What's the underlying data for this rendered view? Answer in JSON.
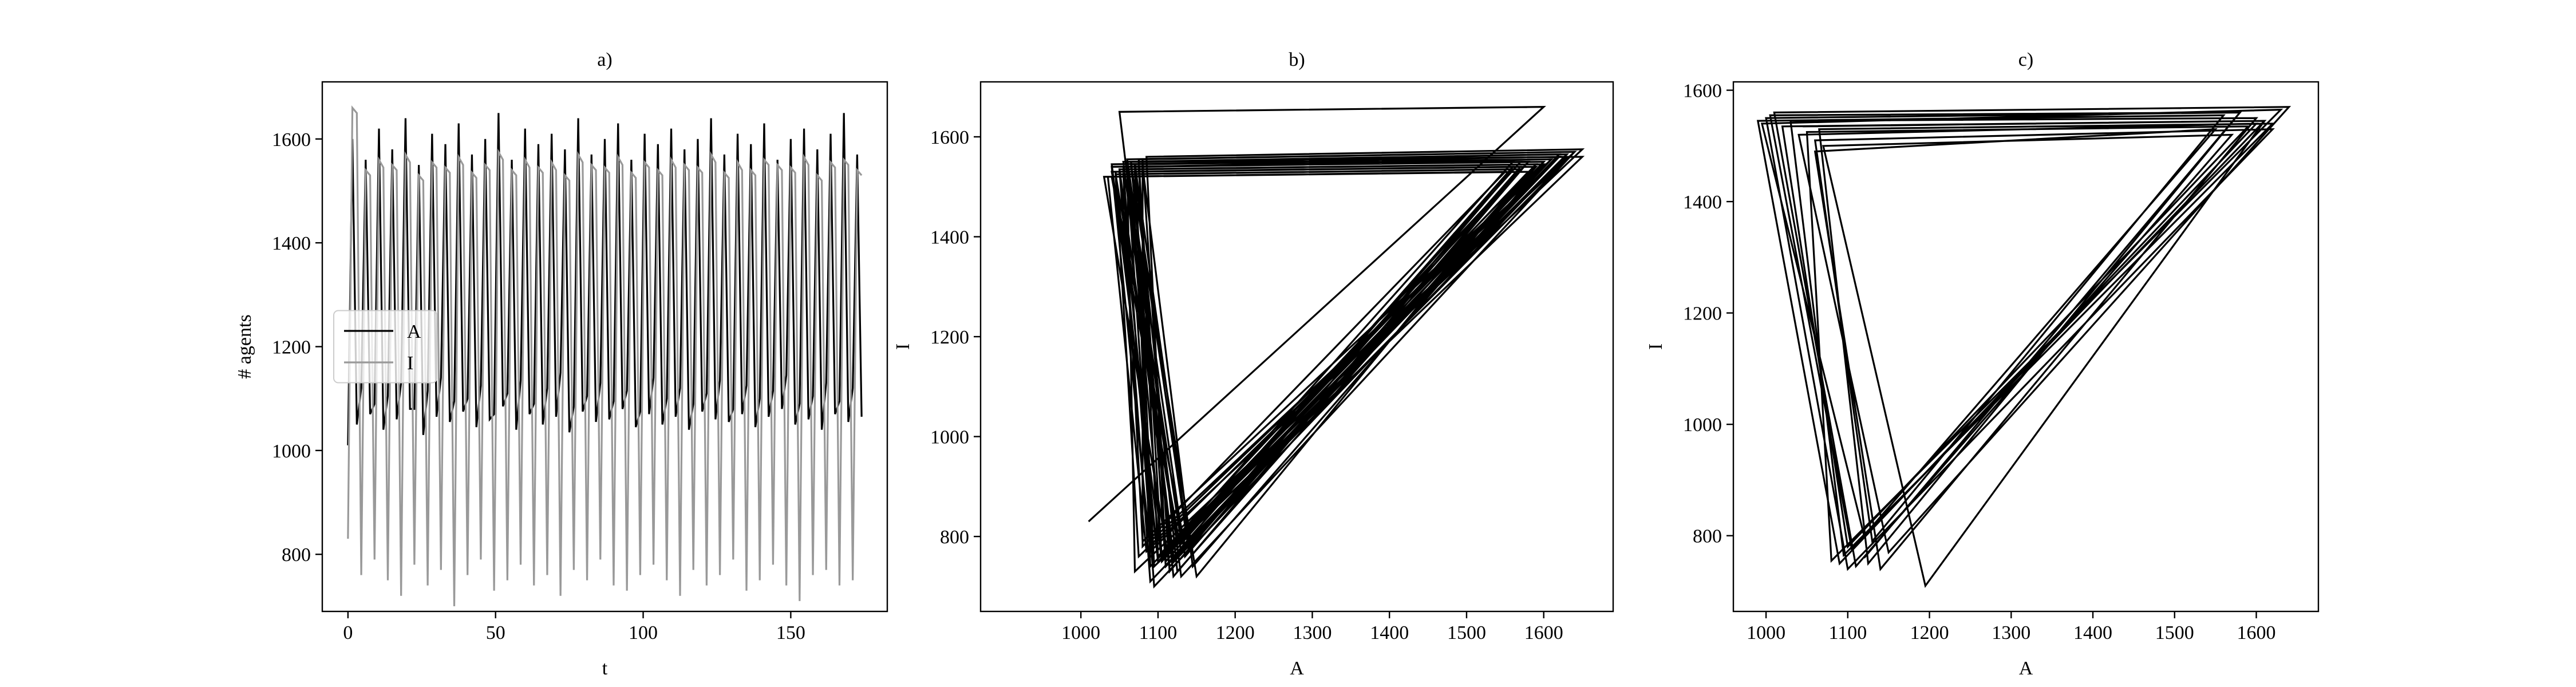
{
  "chart_data": [
    {
      "type": "line",
      "title": "a)",
      "x_label": "t",
      "y_label": "# agents",
      "legend": "center left",
      "x": [
        0,
        1.5,
        3,
        4.5,
        6,
        7.5,
        9,
        10.5,
        12,
        13.5,
        15,
        16.5,
        18,
        19.5,
        21,
        22.5,
        24,
        25.5,
        27,
        28.5,
        30,
        31.5,
        33,
        34.5,
        36,
        37.5,
        39,
        40.5,
        42,
        43.5,
        45,
        46.5,
        48,
        49.5,
        51,
        52.5,
        54,
        55.5,
        57,
        58.5,
        60,
        61.5,
        63,
        64.5,
        66,
        67.5,
        69,
        70.5,
        72,
        73.5,
        75,
        76.5,
        78,
        79.5,
        81,
        82.5,
        84,
        85.5,
        87,
        88.5,
        90,
        91.5,
        93,
        94.5,
        96,
        97.5,
        99,
        100.5,
        102,
        103.5,
        105,
        106.5,
        108,
        109.5,
        111,
        112.5,
        114,
        115.5,
        117,
        118.5,
        120,
        121.5,
        123,
        124.5,
        126,
        127.5,
        129,
        130.5,
        132,
        133.5,
        135,
        136.5,
        138,
        139.5,
        141,
        142.5,
        144,
        145.5,
        147,
        148.5,
        150,
        151.5,
        153,
        154.5,
        156,
        157.5,
        159,
        160.5,
        162,
        163.5,
        165,
        166.5,
        168,
        169.5,
        171,
        172.5,
        174
      ],
      "series": [
        {
          "name": "A",
          "color": "#000000",
          "values": [
            1010,
            1600,
            1050,
            1120,
            1560,
            1070,
            1090,
            1620,
            1040,
            1105,
            1580,
            1060,
            1130,
            1640,
            1080,
            1080,
            1550,
            1030,
            1115,
            1610,
            1065,
            1140,
            1590,
            1055,
            1095,
            1630,
            1075,
            1100,
            1570,
            1045,
            1125,
            1600,
            1060,
            1070,
            1650,
            1085,
            1110,
            1560,
            1040,
            1135,
            1620,
            1070,
            1090,
            1590,
            1050,
            1120,
            1610,
            1065,
            1150,
            1580,
            1035,
            1085,
            1640,
            1075,
            1105,
            1570,
            1055,
            1130,
            1600,
            1060,
            1095,
            1630,
            1080,
            1115,
            1560,
            1045,
            1075,
            1610,
            1070,
            1140,
            1590,
            1050,
            1100,
            1620,
            1065,
            1120,
            1580,
            1040,
            1090,
            1600,
            1075,
            1110,
            1640,
            1060,
            1135,
            1570,
            1055,
            1080,
            1610,
            1070,
            1125,
            1590,
            1045,
            1100,
            1630,
            1065,
            1115,
            1560,
            1080,
            1145,
            1600,
            1050,
            1090,
            1620,
            1060,
            1105,
            1580,
            1040,
            1130,
            1610,
            1070,
            1095,
            1650,
            1055,
            1120,
            1570,
            1065
          ]
        },
        {
          "name": "I",
          "color": "#999999",
          "values": [
            830,
            1660,
            1650,
            760,
            1540,
            1530,
            790,
            1560,
            1545,
            750,
            1550,
            1540,
            720,
            1570,
            1555,
            780,
            1530,
            1520,
            740,
            1555,
            1545,
            770,
            1545,
            1535,
            700,
            1565,
            1550,
            760,
            1535,
            1525,
            790,
            1550,
            1540,
            730,
            1575,
            1560,
            750,
            1540,
            1530,
            780,
            1560,
            1545,
            740,
            1545,
            1535,
            760,
            1555,
            1540,
            720,
            1530,
            1520,
            770,
            1570,
            1555,
            750,
            1550,
            1540,
            790,
            1545,
            1535,
            740,
            1565,
            1550,
            730,
            1535,
            1525,
            760,
            1555,
            1545,
            780,
            1540,
            1530,
            750,
            1560,
            1545,
            720,
            1550,
            1540,
            770,
            1545,
            1535,
            740,
            1570,
            1555,
            760,
            1535,
            1525,
            790,
            1555,
            1540,
            730,
            1540,
            1530,
            750,
            1560,
            1550,
            780,
            1550,
            1540,
            740,
            1545,
            1535,
            710,
            1565,
            1550,
            760,
            1530,
            1520,
            770,
            1555,
            1545,
            740,
            1560,
            1550,
            750,
            1540,
            1530
          ]
        }
      ],
      "xlim": [
        -8.7,
        182.7
      ],
      "xticks": [
        0,
        50,
        100,
        150
      ],
      "ylim": [
        690,
        1710
      ],
      "yticks": [
        800,
        1000,
        1200,
        1400,
        1600
      ]
    },
    {
      "type": "line",
      "title": "b)",
      "x_label": "A",
      "y_label": "I",
      "color": "#000000",
      "x": [
        1010,
        1600,
        1050,
        1120,
        1560,
        1070,
        1090,
        1620,
        1040,
        1105,
        1580,
        1060,
        1130,
        1640,
        1080,
        1080,
        1550,
        1030,
        1115,
        1610,
        1065,
        1140,
        1590,
        1055,
        1095,
        1630,
        1075,
        1100,
        1570,
        1045,
        1125,
        1600,
        1060,
        1070,
        1650,
        1085,
        1110,
        1560,
        1040,
        1135,
        1620,
        1070,
        1090,
        1590,
        1050,
        1120,
        1610,
        1065,
        1150,
        1580,
        1035,
        1085,
        1640,
        1075,
        1105,
        1570,
        1055,
        1130,
        1600,
        1060,
        1095,
        1630,
        1080,
        1115,
        1560,
        1045,
        1075,
        1610,
        1070,
        1140,
        1590,
        1050,
        1100,
        1620,
        1065,
        1120,
        1580,
        1040,
        1090,
        1600,
        1075,
        1110,
        1640,
        1060,
        1135,
        1570,
        1055,
        1080,
        1610,
        1070,
        1125,
        1590,
        1045,
        1100,
        1630,
        1065,
        1115,
        1560,
        1080,
        1145,
        1600,
        1050,
        1090,
        1620,
        1060,
        1105,
        1580,
        1040,
        1130,
        1610,
        1070,
        1095,
        1650,
        1055,
        1120,
        1570,
        1065
      ],
      "values": [
        830,
        1660,
        1650,
        760,
        1540,
        1530,
        790,
        1560,
        1545,
        750,
        1550,
        1540,
        720,
        1570,
        1555,
        780,
        1530,
        1520,
        740,
        1555,
        1545,
        770,
        1545,
        1535,
        700,
        1565,
        1550,
        760,
        1535,
        1525,
        790,
        1550,
        1540,
        730,
        1575,
        1560,
        750,
        1540,
        1530,
        780,
        1560,
        1545,
        740,
        1545,
        1535,
        760,
        1555,
        1540,
        720,
        1530,
        1520,
        770,
        1570,
        1555,
        750,
        1550,
        1540,
        790,
        1545,
        1535,
        740,
        1565,
        1550,
        730,
        1535,
        1525,
        760,
        1555,
        1545,
        780,
        1540,
        1530,
        750,
        1560,
        1545,
        720,
        1550,
        1540,
        770,
        1545,
        1535,
        740,
        1570,
        1555,
        760,
        1535,
        1525,
        790,
        1555,
        1540,
        730,
        1540,
        1530,
        750,
        1560,
        1550,
        780,
        1550,
        1540,
        740,
        1545,
        1535,
        710,
        1565,
        1550,
        760,
        1530,
        1520,
        770,
        1555,
        1545,
        740,
        1560,
        1550,
        750,
        1540,
        1530
      ],
      "xlim": [
        870,
        1690
      ],
      "xticks": [
        1000,
        1100,
        1200,
        1300,
        1400,
        1500,
        1600
      ],
      "ylim": [
        650,
        1710
      ],
      "yticks": [
        800,
        1000,
        1200,
        1400,
        1600
      ]
    },
    {
      "type": "line",
      "title": "c)",
      "x_label": "A",
      "y_label": "I",
      "color": "#000000",
      "x": [
        1120,
        1580,
        1000,
        1100,
        1620,
        1060,
        1130,
        1560,
        990,
        1090,
        1600,
        1040,
        1150,
        1640,
        1010,
        1110,
        1570,
        1070,
        1195,
        1610,
        1020,
        1100,
        1590,
        1050,
        1080,
        1630,
        995,
        1120,
        1550,
        1060,
        1140,
        1600,
        1030,
        1095,
        1620,
        1065,
        1125,
        1580,
        1005,
        1105,
        1610,
        1045
      ],
      "values": [
        760,
        1560,
        1550,
        740,
        1530,
        1510,
        790,
        1555,
        1545,
        750,
        1540,
        1520,
        770,
        1570,
        1560,
        745,
        1520,
        1500,
        710,
        1545,
        1535,
        780,
        1535,
        1525,
        755,
        1565,
        1540,
        800,
        1530,
        1490,
        740,
        1550,
        1545,
        765,
        1540,
        1530,
        750,
        1560,
        1555,
        775,
        1545,
        1535
      ],
      "xlim": [
        960,
        1676
      ],
      "xticks": [
        1000,
        1100,
        1200,
        1300,
        1400,
        1500,
        1600
      ],
      "ylim": [
        664,
        1615
      ],
      "yticks": [
        800,
        1000,
        1200,
        1400,
        1600
      ]
    }
  ]
}
